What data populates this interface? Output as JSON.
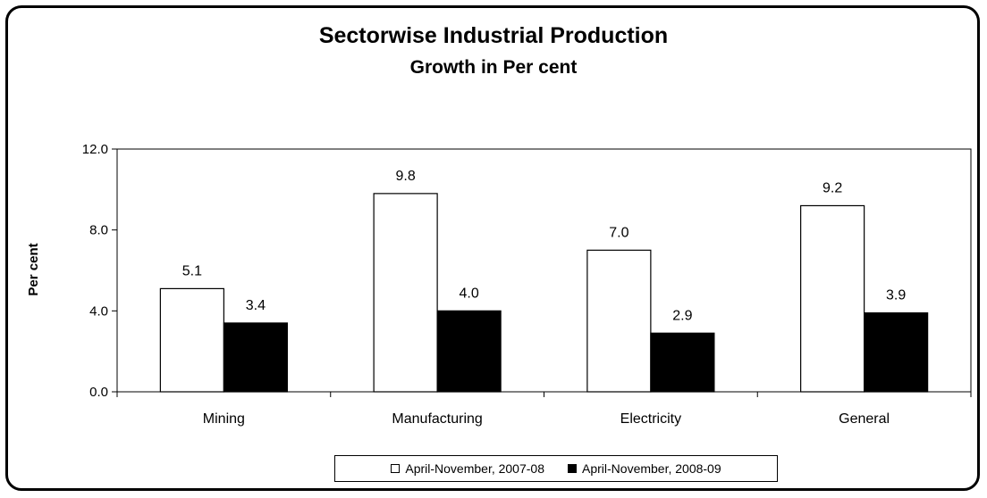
{
  "chart_data": {
    "type": "bar",
    "title": "Sectorwise Industrial Production",
    "subtitle": "Growth in Per cent",
    "xlabel": "",
    "ylabel": "Per cent",
    "categories": [
      "Mining",
      "Manufacturing",
      "Electricity",
      "General"
    ],
    "series": [
      {
        "name": "April-November, 2007-08",
        "values": [
          5.1,
          9.8,
          7.0,
          9.2
        ],
        "color": "#ffffff",
        "labels": [
          "5.1",
          "9.8",
          "7.0",
          "9.2"
        ]
      },
      {
        "name": "April-November, 2008-09",
        "values": [
          3.4,
          4.0,
          2.9,
          3.9
        ],
        "color": "#000000",
        "labels": [
          "3.4",
          "4.0",
          "2.9",
          "3.9"
        ]
      }
    ],
    "ylim": [
      0,
      12
    ],
    "yticks": [
      0,
      4,
      8,
      12
    ],
    "ytick_labels": [
      "0.0",
      "4.0",
      "8.0",
      "12.0"
    ],
    "grid": false,
    "legend_position": "bottom"
  }
}
